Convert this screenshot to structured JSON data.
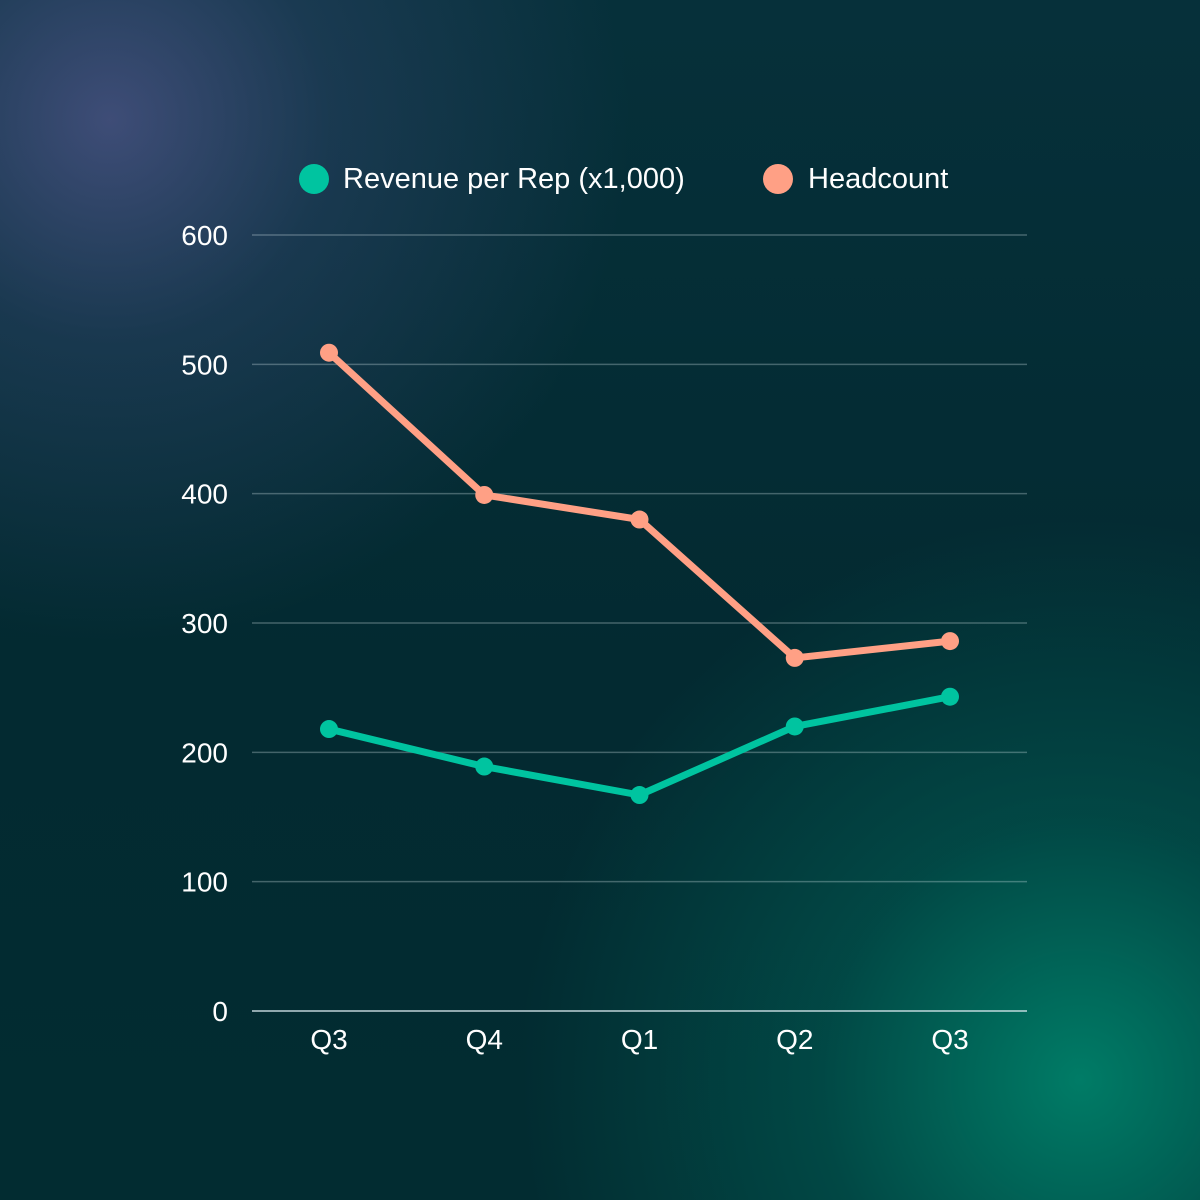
{
  "chart_data": {
    "type": "line",
    "title": "",
    "xlabel": "",
    "ylabel": "",
    "categories": [
      "Q3",
      "Q4",
      "Q1",
      "Q2",
      "Q3"
    ],
    "ylim": [
      0,
      600
    ],
    "yticks": [
      0,
      100,
      200,
      300,
      400,
      500,
      600
    ],
    "grid": true,
    "legend_position": "top-center",
    "series": [
      {
        "name": "Revenue per Rep (x1,000)",
        "color": "#00c4a0",
        "values": [
          218,
          189,
          167,
          220,
          243
        ]
      },
      {
        "name": "Headcount",
        "color": "#ffa085",
        "values": [
          509,
          399,
          380,
          273,
          286
        ]
      }
    ]
  }
}
